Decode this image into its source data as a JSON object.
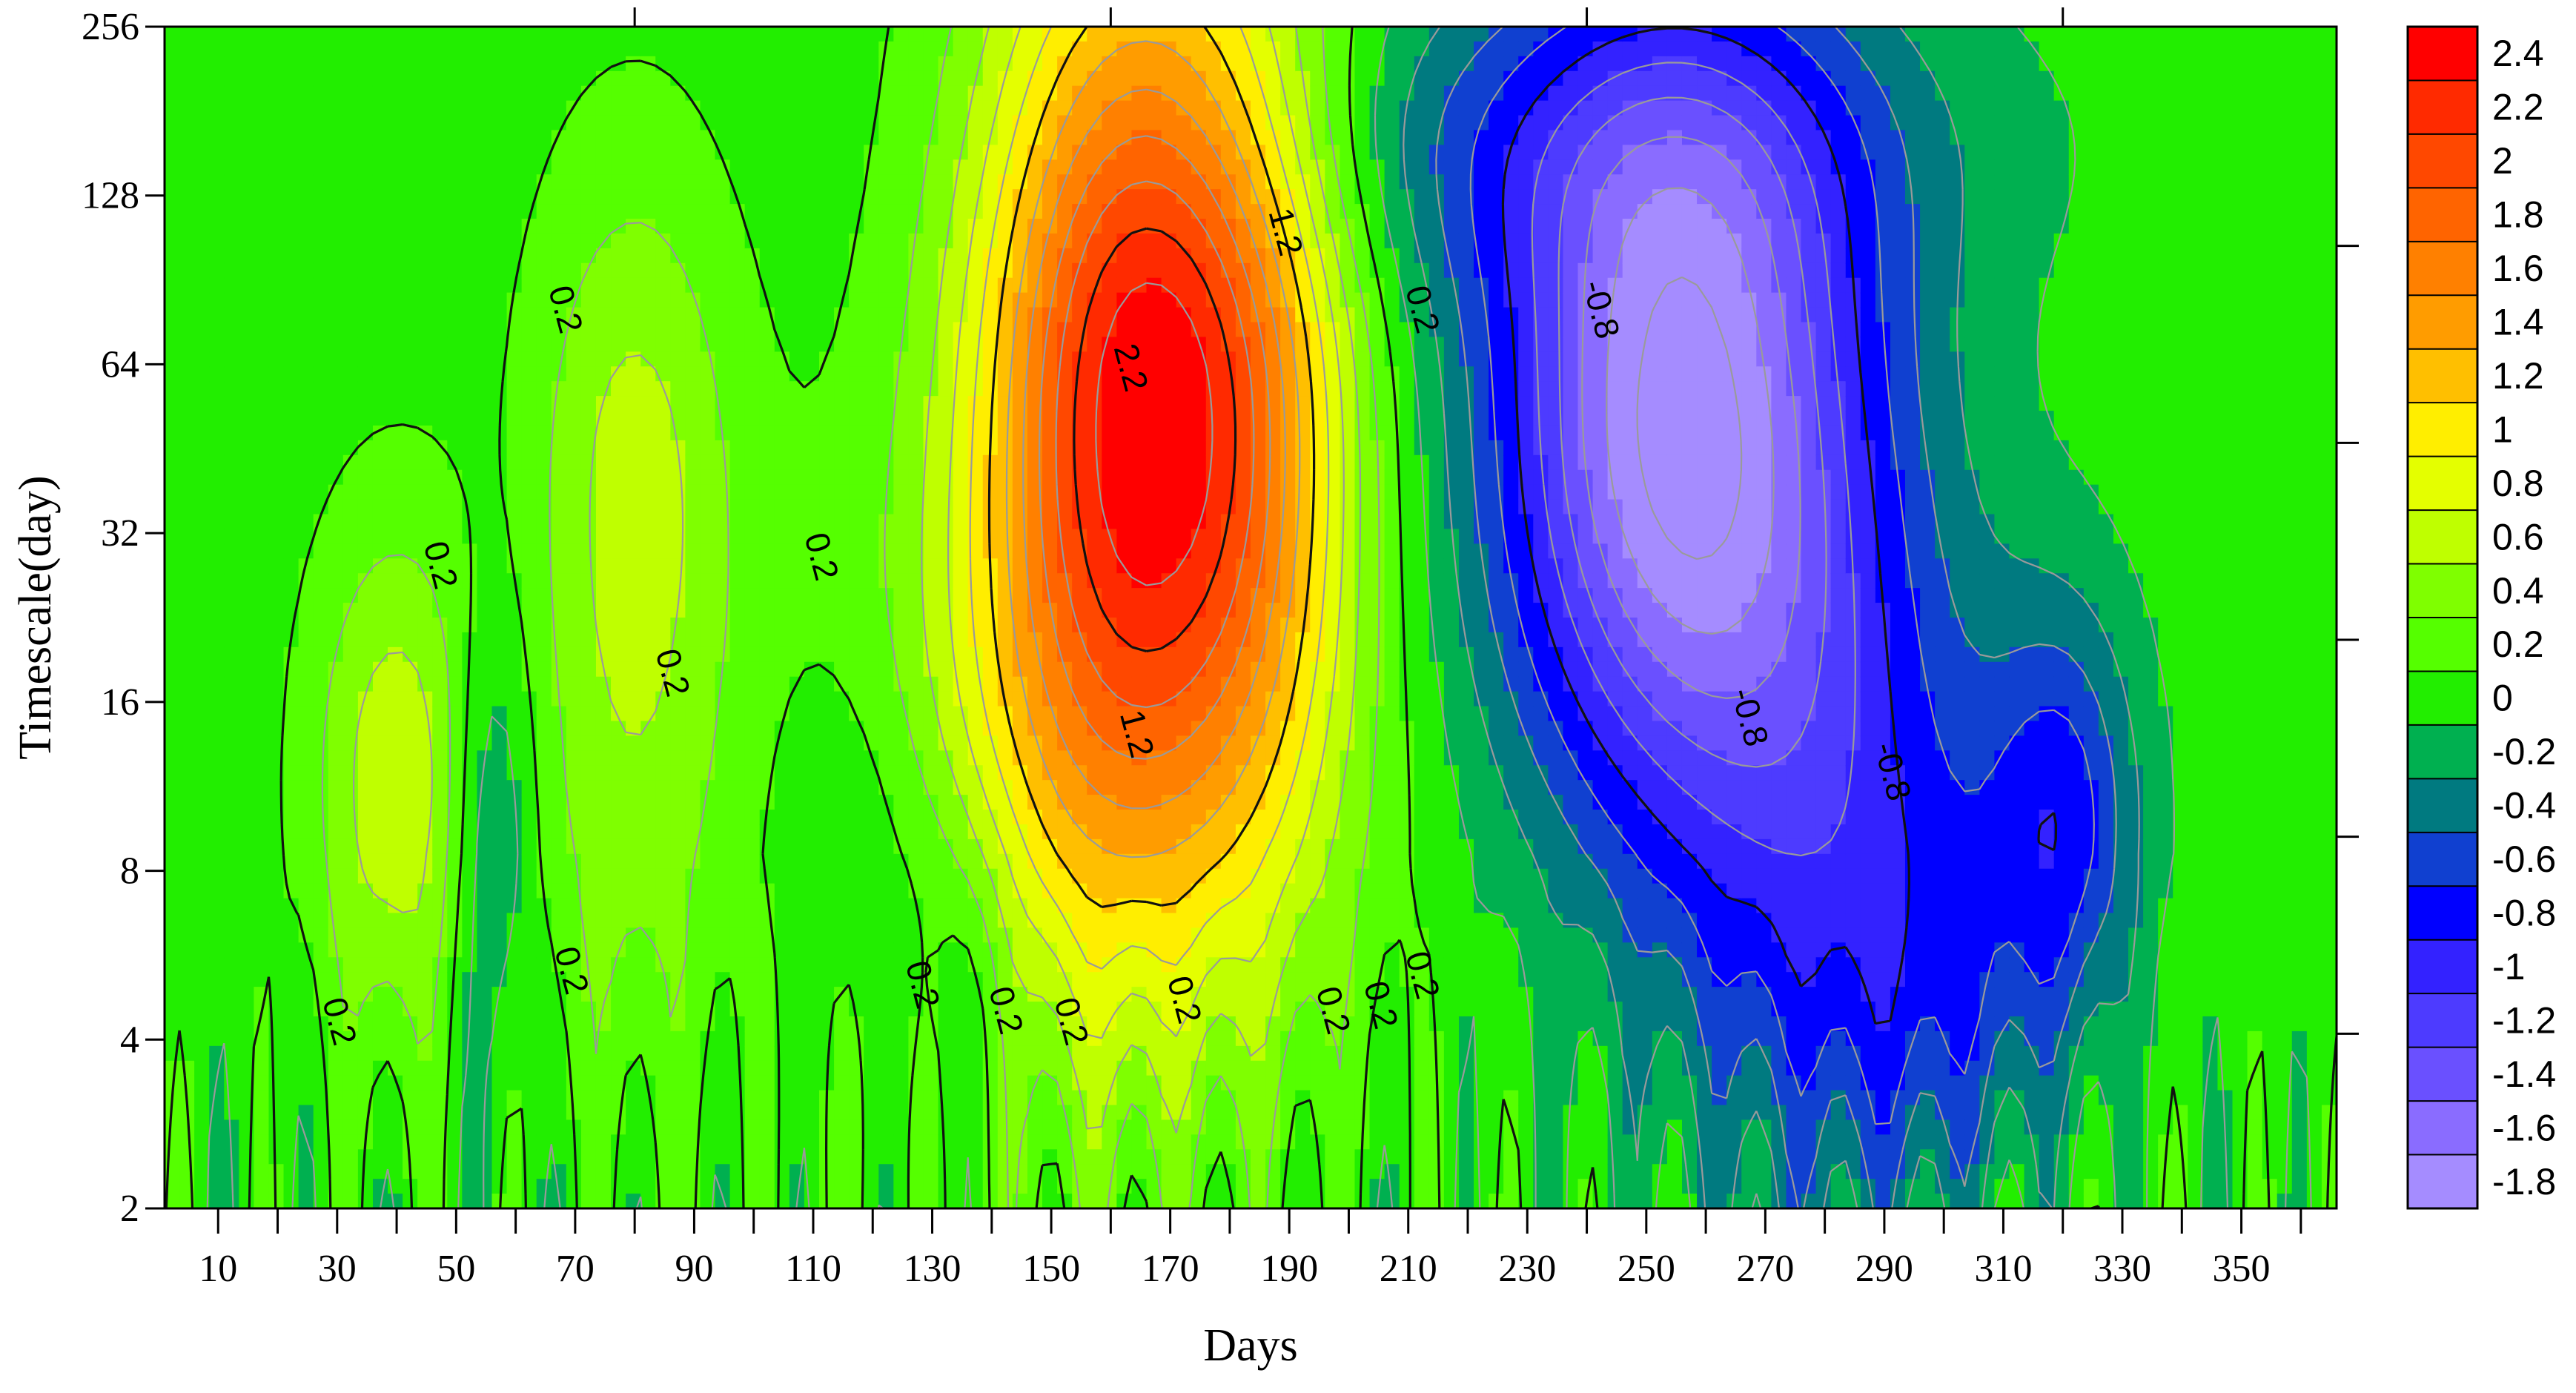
{
  "chart_data": {
    "type": "heatmap",
    "subtype": "filled contour (wavelet-style time-scale plot)",
    "xlabel": "Days",
    "ylabel": "Timescale(day)",
    "x_tick_labels": [
      "10",
      "30",
      "50",
      "70",
      "90",
      "110",
      "130",
      "150",
      "170",
      "190",
      "210",
      "230",
      "250",
      "270",
      "290",
      "310",
      "330",
      "350"
    ],
    "x_ticks": [
      10,
      30,
      50,
      70,
      90,
      110,
      130,
      150,
      170,
      190,
      210,
      230,
      250,
      270,
      290,
      310,
      330,
      350
    ],
    "xlim": [
      1,
      366
    ],
    "y_tick_labels": [
      "2",
      "4",
      "8",
      "16",
      "32",
      "64",
      "128",
      "256"
    ],
    "y_ticks": [
      2,
      4,
      8,
      16,
      32,
      64,
      128,
      256
    ],
    "ylim": [
      2,
      256
    ],
    "y_scale": "log2",
    "colorbar": {
      "levels": [
        "2.4",
        "2.2",
        "2",
        "1.8",
        "1.6",
        "1.4",
        "1.2",
        "1",
        "0.8",
        "0.6",
        "0.4",
        "0.2",
        "0",
        "-0.2",
        "-0.4",
        "-0.6",
        "-0.8",
        "-1",
        "-1.2",
        "-1.4",
        "-1.6",
        "-1.8"
      ],
      "level_values": [
        2.4,
        2.2,
        2.0,
        1.8,
        1.6,
        1.4,
        1.2,
        1.0,
        0.8,
        0.6,
        0.4,
        0.2,
        0,
        -0.2,
        -0.4,
        -0.6,
        -0.8,
        -1.0,
        -1.2,
        -1.4,
        -1.6,
        -1.8
      ],
      "colors": [
        "#ff0000",
        "#ff2a00",
        "#ff4800",
        "#ff6400",
        "#ff8000",
        "#ff9c00",
        "#ffbf00",
        "#ffee00",
        "#e4ff00",
        "#bfff00",
        "#7fff00",
        "#55ff00",
        "#22ee00",
        "#00b050",
        "#007a80",
        "#1040d0",
        "#0000ff",
        "#3322ff",
        "#4d3bff",
        "#6a50ff",
        "#8a6cff",
        "#a58cff"
      ],
      "placement": "right"
    },
    "features": [
      {
        "center_day": 165,
        "center_timescale": 64,
        "peak_value": 2.2,
        "sign": "positive",
        "span_days": [
          115,
          215
        ]
      },
      {
        "center_day": 255,
        "center_timescale": 48,
        "peak_value": -1.8,
        "sign": "negative",
        "span_days": [
          235,
          295
        ]
      },
      {
        "center_day": 40,
        "center_timescale": 10,
        "peak_value": 0.8,
        "sign": "positive"
      },
      {
        "center_day": 80,
        "center_timescale": 50,
        "peak_value": 0.6,
        "sign": "positive"
      },
      {
        "center_day": 320,
        "center_timescale": 10,
        "peak_value": -0.8,
        "sign": "negative"
      }
    ],
    "contour_labels": [
      {
        "text": "0.2",
        "day": 68,
        "timescale": 80
      },
      {
        "text": "0.2",
        "day": 47,
        "timescale": 28
      },
      {
        "text": "0.2",
        "day": 86,
        "timescale": 18
      },
      {
        "text": "0.2",
        "day": 30,
        "timescale": 4.3
      },
      {
        "text": "0.2",
        "day": 69,
        "timescale": 5.3
      },
      {
        "text": "0.2",
        "day": 111,
        "timescale": 29
      },
      {
        "text": "0.2",
        "day": 128,
        "timescale": 5.0
      },
      {
        "text": "0.2",
        "day": 142,
        "timescale": 4.5
      },
      {
        "text": "0.2",
        "day": 153,
        "timescale": 4.3
      },
      {
        "text": "0.2",
        "day": 172,
        "timescale": 4.7
      },
      {
        "text": "0.2",
        "day": 197,
        "timescale": 4.5
      },
      {
        "text": "0.2",
        "day": 205,
        "timescale": 4.6
      },
      {
        "text": "0.2",
        "day": 212,
        "timescale": 5.2
      },
      {
        "text": "0.2",
        "day": 212,
        "timescale": 80
      },
      {
        "text": "2.2",
        "day": 163,
        "timescale": 63
      },
      {
        "text": "1.2",
        "day": 189,
        "timescale": 110
      },
      {
        "text": "1.2",
        "day": 164,
        "timescale": 14
      },
      {
        "text": "-0.8",
        "day": 242,
        "timescale": 80
      },
      {
        "text": "-0.8",
        "day": 267,
        "timescale": 15
      },
      {
        "text": "-0.8",
        "day": 291,
        "timescale": 12
      }
    ]
  }
}
